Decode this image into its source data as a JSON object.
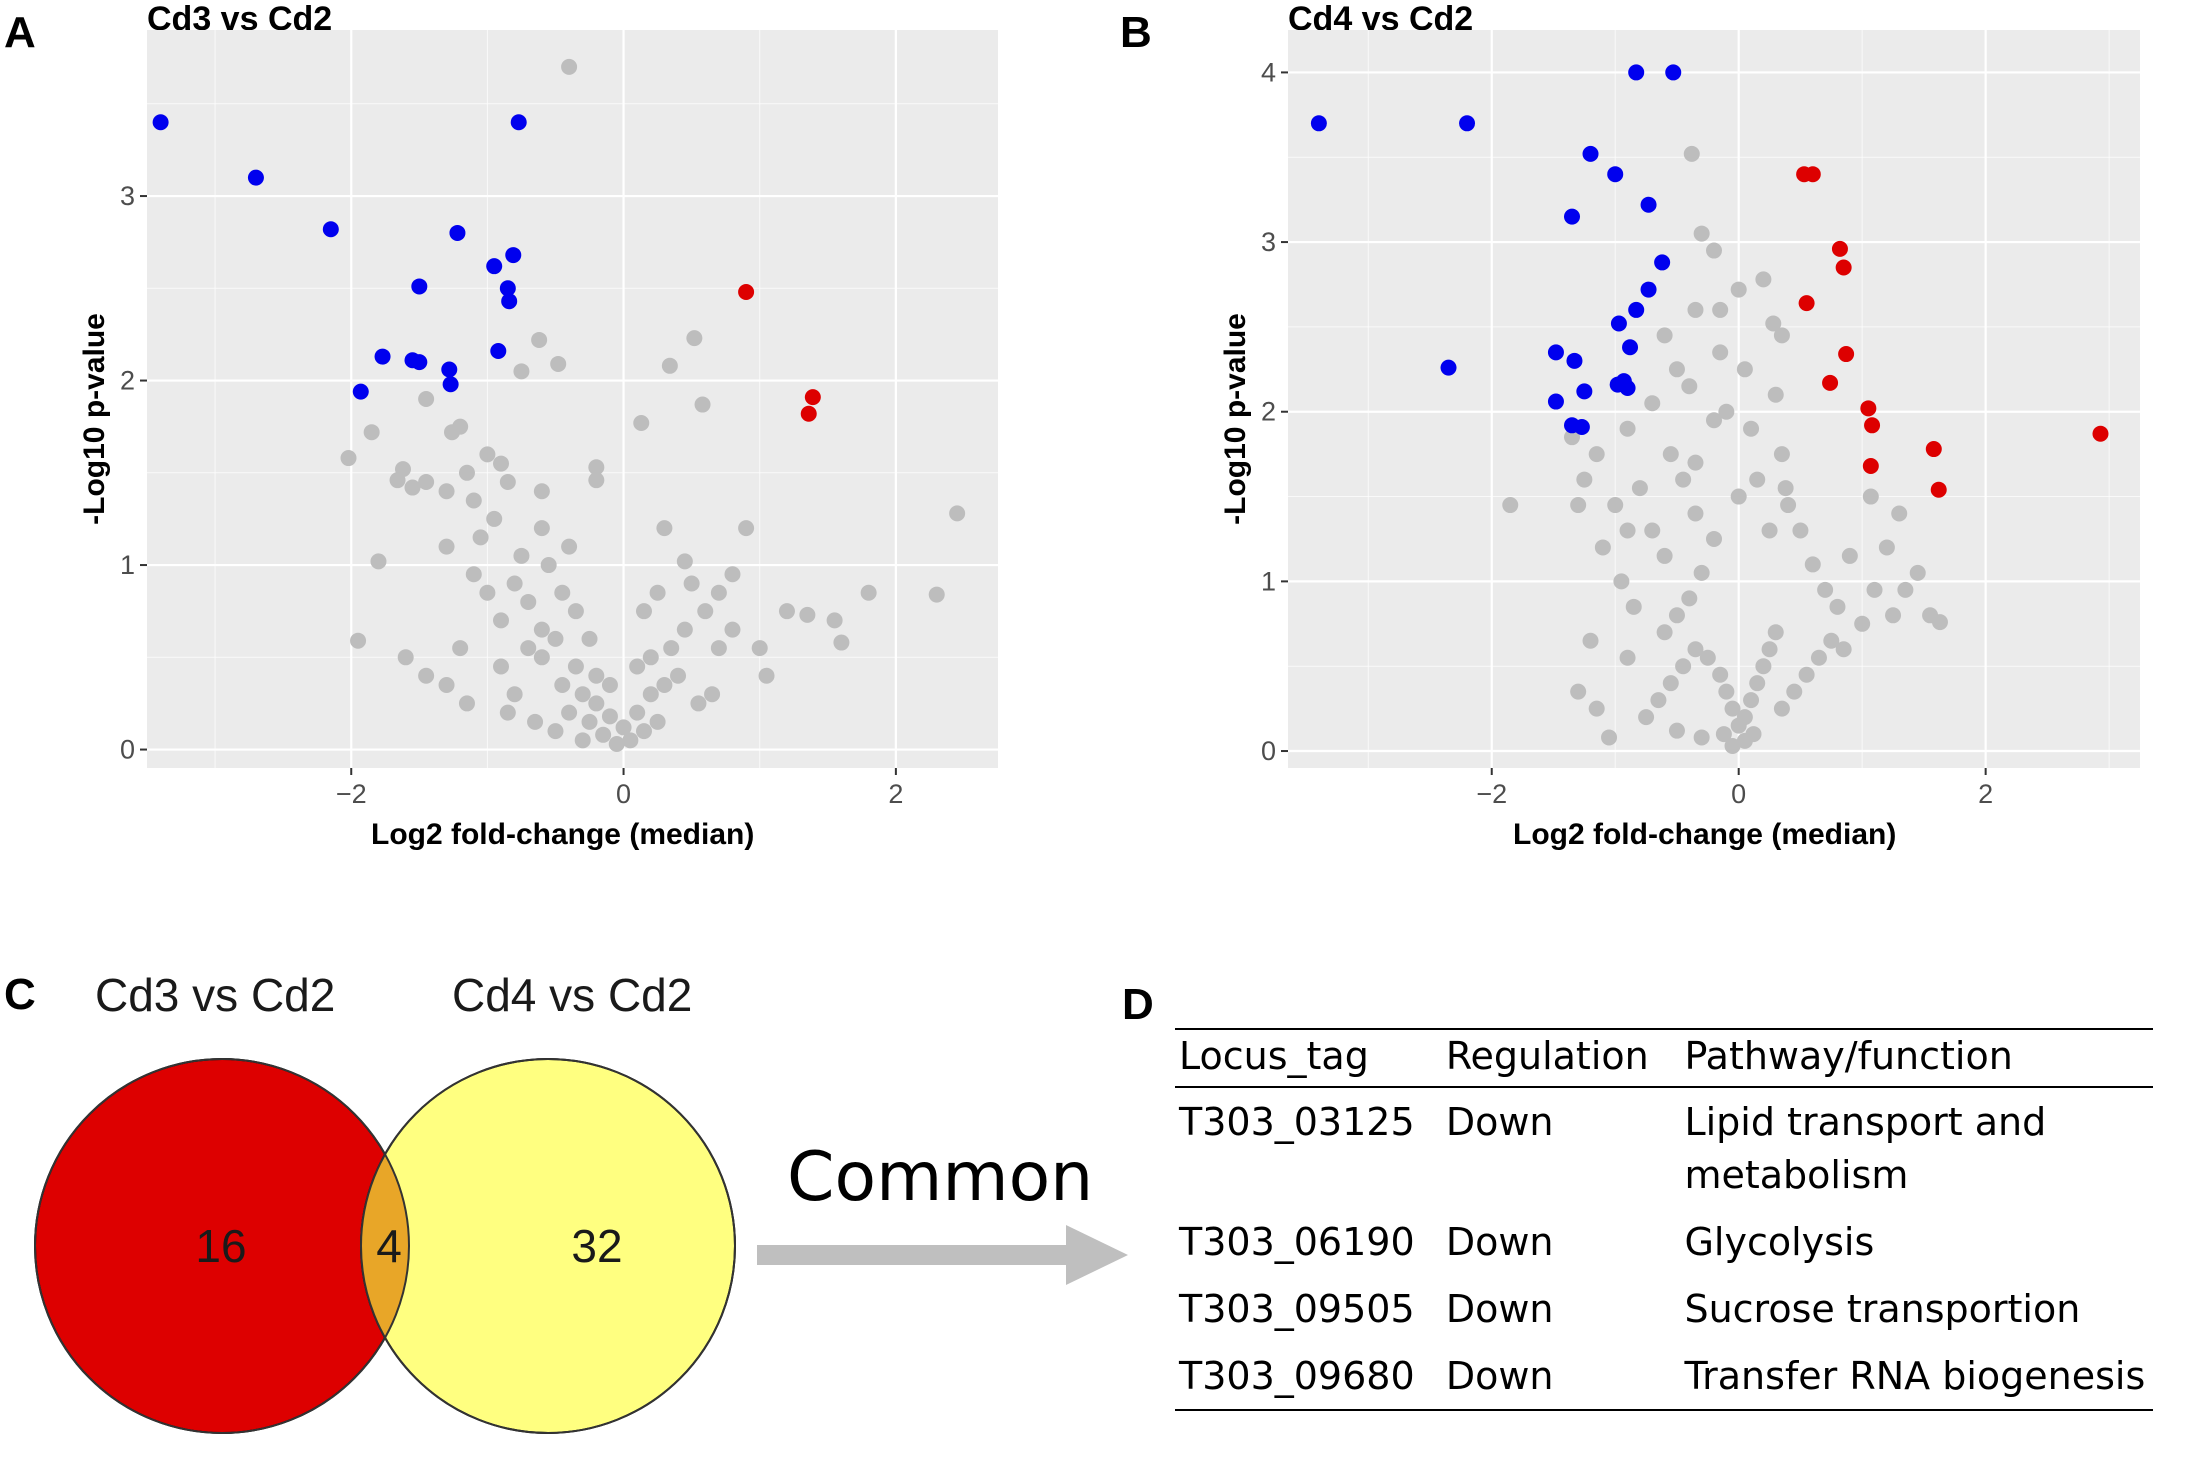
{
  "panels": {
    "a": "A",
    "b": "B",
    "c": "C",
    "d": "D"
  },
  "chart_data": [
    {
      "type": "scatter",
      "title": "Cd3 vs Cd2",
      "xlabel": "Log2 fold-change (median)",
      "ylabel": "-Log10 p-value",
      "xlim": [
        -3.5,
        2.75
      ],
      "ylim": [
        -0.1,
        3.9
      ],
      "xticks": [
        -2,
        0,
        2
      ],
      "yticks": [
        0,
        1,
        2,
        3
      ],
      "grid": true,
      "colors": {
        "down": "#0000ee",
        "up": "#dd0000",
        "ns": "#bdbdbd",
        "panel": "#ebebeb",
        "grid": "#ffffff"
      },
      "series": [
        {
          "name": "down",
          "points": [
            [
              -3.4,
              3.4
            ],
            [
              -2.7,
              3.1
            ],
            [
              -2.15,
              2.82
            ],
            [
              -1.22,
              2.8
            ],
            [
              -0.77,
              3.4
            ],
            [
              -0.81,
              2.68
            ],
            [
              -0.95,
              2.62
            ],
            [
              -1.5,
              2.51
            ],
            [
              -0.85,
              2.5
            ],
            [
              -0.84,
              2.43
            ],
            [
              -1.28,
              2.06
            ],
            [
              -1.77,
              2.13
            ],
            [
              -1.55,
              2.11
            ],
            [
              -1.5,
              2.1
            ],
            [
              -1.27,
              1.98
            ],
            [
              -1.93,
              1.94
            ],
            [
              -0.92,
              2.16
            ]
          ]
        },
        {
          "name": "up",
          "points": [
            [
              0.9,
              2.48
            ],
            [
              1.39,
              1.91
            ],
            [
              1.36,
              1.82
            ]
          ]
        },
        {
          "name": "ns",
          "points": [
            [
              -0.4,
              3.7
            ],
            [
              -0.62,
              2.22
            ],
            [
              -0.48,
              2.09
            ],
            [
              -0.75,
              2.05
            ],
            [
              0.52,
              2.23
            ],
            [
              0.34,
              2.08
            ],
            [
              0.58,
              1.87
            ],
            [
              0.13,
              1.77
            ],
            [
              -1.45,
              1.9
            ],
            [
              -1.2,
              1.75
            ],
            [
              -1.26,
              1.72
            ],
            [
              -2.02,
              1.58
            ],
            [
              -1.85,
              1.72
            ],
            [
              -1.66,
              1.46
            ],
            [
              -1.55,
              1.42
            ],
            [
              -1.45,
              1.45
            ],
            [
              -1.62,
              1.52
            ],
            [
              -1.0,
              1.6
            ],
            [
              -0.9,
              1.55
            ],
            [
              -1.1,
              1.35
            ],
            [
              -1.3,
              1.4
            ],
            [
              -0.6,
              1.4
            ],
            [
              -0.2,
              1.53
            ],
            [
              -0.2,
              1.46
            ],
            [
              -1.8,
              1.02
            ],
            [
              -1.95,
              0.59
            ],
            [
              0.3,
              1.2
            ],
            [
              0.9,
              1.2
            ],
            [
              0.5,
              0.9
            ],
            [
              0.45,
              1.02
            ],
            [
              1.8,
              0.85
            ],
            [
              1.55,
              0.7
            ],
            [
              1.2,
              0.75
            ],
            [
              1.35,
              0.73
            ],
            [
              2.3,
              0.84
            ],
            [
              2.45,
              1.28
            ],
            [
              1.6,
              0.58
            ],
            [
              1.0,
              0.55
            ],
            [
              0.8,
              0.65
            ],
            [
              0.7,
              0.55
            ],
            [
              -0.7,
              0.8
            ],
            [
              -1.1,
              0.95
            ],
            [
              -1.2,
              0.55
            ],
            [
              -0.9,
              0.45
            ],
            [
              -0.6,
              0.5
            ],
            [
              -0.5,
              0.6
            ],
            [
              -0.8,
              0.3
            ],
            [
              -0.4,
              0.2
            ],
            [
              -0.3,
              0.3
            ],
            [
              -0.2,
              0.25
            ],
            [
              -0.1,
              0.18
            ],
            [
              0.0,
              0.12
            ],
            [
              0.1,
              0.2
            ],
            [
              0.2,
              0.3
            ],
            [
              0.3,
              0.35
            ],
            [
              0.4,
              0.4
            ],
            [
              -0.35,
              0.45
            ],
            [
              -0.45,
              0.35
            ],
            [
              -0.25,
              0.15
            ],
            [
              -0.15,
              0.08
            ],
            [
              0.05,
              0.05
            ],
            [
              -0.05,
              0.03
            ],
            [
              0.15,
              0.1
            ],
            [
              0.25,
              0.15
            ],
            [
              -0.6,
              0.65
            ],
            [
              -0.7,
              0.55
            ],
            [
              -0.9,
              0.7
            ],
            [
              -1.0,
              0.85
            ],
            [
              -0.8,
              0.9
            ],
            [
              -1.3,
              1.1
            ],
            [
              -1.05,
              1.15
            ],
            [
              -0.95,
              1.25
            ],
            [
              -0.75,
              1.05
            ],
            [
              -0.55,
              1.0
            ],
            [
              -0.45,
              0.85
            ],
            [
              -0.35,
              0.75
            ],
            [
              -0.25,
              0.6
            ],
            [
              0.35,
              0.55
            ],
            [
              0.45,
              0.65
            ],
            [
              0.6,
              0.75
            ],
            [
              0.7,
              0.85
            ],
            [
              0.8,
              0.95
            ],
            [
              -1.15,
              0.25
            ],
            [
              -1.3,
              0.35
            ],
            [
              -1.45,
              0.4
            ],
            [
              -0.65,
              0.15
            ],
            [
              -0.5,
              0.1
            ],
            [
              0.65,
              0.3
            ],
            [
              0.55,
              0.25
            ],
            [
              -0.3,
              0.05
            ],
            [
              -0.85,
              0.2
            ],
            [
              1.05,
              0.4
            ],
            [
              -1.6,
              0.5
            ],
            [
              -0.2,
              0.4
            ],
            [
              0.2,
              0.5
            ],
            [
              -0.1,
              0.35
            ],
            [
              0.1,
              0.45
            ],
            [
              -0.4,
              1.1
            ],
            [
              -0.6,
              1.2
            ],
            [
              -1.15,
              1.5
            ],
            [
              -0.85,
              1.45
            ],
            [
              0.15,
              0.75
            ],
            [
              0.25,
              0.85
            ]
          ]
        }
      ]
    },
    {
      "type": "scatter",
      "title": "Cd4 vs Cd2",
      "xlabel": "Log2 fold-change (median)",
      "ylabel": "-Log10 p-value",
      "xlim": [
        -3.65,
        3.25
      ],
      "ylim": [
        -0.1,
        4.25
      ],
      "xticks": [
        -2,
        0,
        2
      ],
      "yticks": [
        0,
        1,
        2,
        3,
        4
      ],
      "grid": true,
      "colors": {
        "down": "#0000ee",
        "up": "#dd0000",
        "ns": "#bdbdbd",
        "panel": "#ebebeb",
        "grid": "#ffffff"
      },
      "series": [
        {
          "name": "down",
          "points": [
            [
              -0.83,
              4.0
            ],
            [
              -0.53,
              4.0
            ],
            [
              -3.4,
              3.7
            ],
            [
              -2.2,
              3.7
            ],
            [
              -1.2,
              3.52
            ],
            [
              -1.0,
              3.4
            ],
            [
              -0.73,
              3.22
            ],
            [
              -1.35,
              3.15
            ],
            [
              -0.62,
              2.88
            ],
            [
              -0.73,
              2.72
            ],
            [
              -0.83,
              2.6
            ],
            [
              -0.97,
              2.52
            ],
            [
              -0.88,
              2.38
            ],
            [
              -1.48,
              2.35
            ],
            [
              -1.33,
              2.3
            ],
            [
              -2.35,
              2.26
            ],
            [
              -0.93,
              2.18
            ],
            [
              -0.98,
              2.16
            ],
            [
              -0.9,
              2.14
            ],
            [
              -1.25,
              2.12
            ],
            [
              -1.48,
              2.06
            ],
            [
              -1.35,
              1.92
            ],
            [
              -1.27,
              1.91
            ]
          ]
        },
        {
          "name": "up",
          "points": [
            [
              0.53,
              3.4
            ],
            [
              0.6,
              3.4
            ],
            [
              0.82,
              2.96
            ],
            [
              0.85,
              2.85
            ],
            [
              0.55,
              2.64
            ],
            [
              0.87,
              2.34
            ],
            [
              0.74,
              2.17
            ],
            [
              1.05,
              2.02
            ],
            [
              1.08,
              1.92
            ],
            [
              2.93,
              1.87
            ],
            [
              1.58,
              1.78
            ],
            [
              1.07,
              1.68
            ],
            [
              1.62,
              1.54
            ]
          ]
        },
        {
          "name": "ns",
          "points": [
            [
              -0.38,
              3.52
            ],
            [
              -0.3,
              3.05
            ],
            [
              -0.2,
              2.95
            ],
            [
              0.0,
              2.72
            ],
            [
              0.2,
              2.78
            ],
            [
              -0.15,
              2.6
            ],
            [
              0.28,
              2.52
            ],
            [
              0.35,
              2.45
            ],
            [
              -0.35,
              2.6
            ],
            [
              -0.15,
              2.35
            ],
            [
              0.3,
              2.1
            ],
            [
              0.35,
              1.75
            ],
            [
              0.38,
              1.55
            ],
            [
              -0.6,
              2.45
            ],
            [
              -0.5,
              2.25
            ],
            [
              -0.4,
              2.15
            ],
            [
              -1.85,
              1.45
            ],
            [
              -1.3,
              1.45
            ],
            [
              -1.25,
              1.6
            ],
            [
              -1.35,
              1.85
            ],
            [
              -1.15,
              1.75
            ],
            [
              -0.9,
              1.9
            ],
            [
              -0.7,
              2.05
            ],
            [
              -0.55,
              1.75
            ],
            [
              -0.45,
              1.6
            ],
            [
              -0.35,
              1.4
            ],
            [
              -1.1,
              1.2
            ],
            [
              -0.95,
              1.0
            ],
            [
              -0.85,
              0.85
            ],
            [
              -1.2,
              0.65
            ],
            [
              -0.9,
              0.55
            ],
            [
              -1.3,
              0.35
            ],
            [
              -1.15,
              0.25
            ],
            [
              -1.05,
              0.08
            ],
            [
              0.4,
              1.45
            ],
            [
              0.5,
              1.3
            ],
            [
              0.6,
              1.1
            ],
            [
              0.7,
              0.95
            ],
            [
              0.8,
              0.85
            ],
            [
              0.9,
              1.15
            ],
            [
              1.0,
              0.75
            ],
            [
              1.1,
              0.95
            ],
            [
              1.2,
              1.2
            ],
            [
              1.35,
              0.95
            ],
            [
              1.45,
              1.05
            ],
            [
              1.25,
              0.8
            ],
            [
              1.55,
              0.8
            ],
            [
              1.63,
              0.76
            ],
            [
              1.07,
              1.5
            ],
            [
              1.3,
              1.4
            ],
            [
              -0.2,
              1.25
            ],
            [
              -0.3,
              1.05
            ],
            [
              -0.4,
              0.9
            ],
            [
              -0.5,
              0.8
            ],
            [
              -0.6,
              0.7
            ],
            [
              -0.25,
              0.55
            ],
            [
              -0.15,
              0.45
            ],
            [
              -0.1,
              0.35
            ],
            [
              -0.05,
              0.25
            ],
            [
              0.0,
              0.15
            ],
            [
              0.05,
              0.2
            ],
            [
              0.1,
              0.3
            ],
            [
              0.15,
              0.4
            ],
            [
              0.2,
              0.5
            ],
            [
              0.25,
              0.6
            ],
            [
              0.3,
              0.7
            ],
            [
              -0.35,
              0.6
            ],
            [
              -0.45,
              0.5
            ],
            [
              -0.55,
              0.4
            ],
            [
              -0.65,
              0.3
            ],
            [
              -0.75,
              0.2
            ],
            [
              -0.5,
              0.12
            ],
            [
              -0.3,
              0.08
            ],
            [
              0.35,
              0.25
            ],
            [
              0.45,
              0.35
            ],
            [
              0.55,
              0.45
            ],
            [
              0.65,
              0.55
            ],
            [
              0.75,
              0.65
            ],
            [
              0.85,
              0.6
            ],
            [
              -0.05,
              0.03
            ],
            [
              0.05,
              0.06
            ],
            [
              0.12,
              0.1
            ],
            [
              -0.12,
              0.1
            ],
            [
              -0.6,
              1.15
            ],
            [
              -0.7,
              1.3
            ],
            [
              -0.8,
              1.55
            ],
            [
              -0.35,
              1.7
            ],
            [
              0.0,
              1.5
            ],
            [
              0.15,
              1.6
            ],
            [
              0.25,
              1.3
            ],
            [
              -0.2,
              1.95
            ],
            [
              -0.1,
              2.0
            ],
            [
              0.05,
              2.25
            ],
            [
              0.1,
              1.9
            ],
            [
              -0.9,
              1.3
            ],
            [
              -1.0,
              1.45
            ]
          ]
        }
      ]
    }
  ],
  "venn": {
    "left_label": "Cd3 vs Cd2",
    "right_label": "Cd4 vs Cd2",
    "left_only": "16",
    "overlap": "4",
    "right_only": "32",
    "left_color": "#dd0000",
    "right_color": "#ffff80",
    "overlap_color": "#e8a628"
  },
  "common_label": "Common",
  "gene_table": {
    "headers": [
      "Locus_tag",
      "Regulation",
      "Pathway/function"
    ],
    "rows": [
      [
        "T303_03125",
        "Down",
        "Lipid transport and metabolism"
      ],
      [
        "T303_06190",
        "Down",
        "Glycolysis"
      ],
      [
        "T303_09505",
        "Down",
        "Sucrose transportion"
      ],
      [
        "T303_09680",
        "Down",
        "Transfer RNA biogenesis"
      ]
    ]
  }
}
